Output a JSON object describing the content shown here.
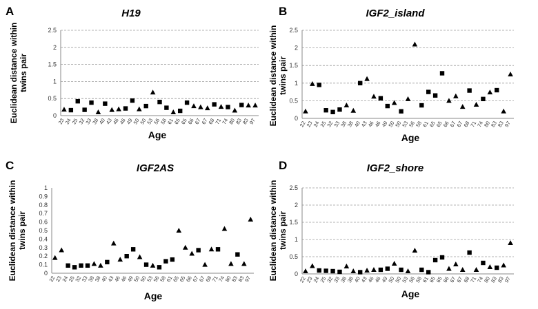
{
  "chart_data": [
    {
      "type": "scatter",
      "letter": "A",
      "title": "H19",
      "xlabel": "Age",
      "ylabel": [
        "Euclidean distance within",
        "twins pair"
      ],
      "ylim": [
        0,
        2.5
      ],
      "yticks": [
        "0",
        "0.5",
        "1",
        "1.5",
        "2",
        "2.5"
      ],
      "grid": true,
      "categories": [
        "23",
        "24",
        "25",
        "32",
        "33",
        "38",
        "40",
        "43",
        "46",
        "46",
        "49",
        "50",
        "50",
        "53",
        "56",
        "58",
        "61",
        "65",
        "65",
        "66",
        "67",
        "67",
        "68",
        "71",
        "74",
        "80",
        "83",
        "83",
        "97"
      ],
      "markers": [
        "triangle",
        "square",
        "square",
        "square",
        "square",
        "triangle",
        "square",
        "triangle",
        "triangle",
        "square",
        "square",
        "triangle",
        "square",
        "triangle",
        "square",
        "square",
        "triangle",
        "square",
        "square",
        "triangle",
        "triangle",
        "triangle",
        "square",
        "triangle",
        "square",
        "triangle",
        "square",
        "triangle",
        "triangle"
      ],
      "values": [
        0.18,
        0.16,
        0.42,
        0.17,
        0.38,
        0.1,
        0.35,
        0.17,
        0.19,
        0.21,
        0.44,
        0.19,
        0.28,
        0.68,
        0.4,
        0.23,
        0.1,
        0.14,
        0.38,
        0.28,
        0.25,
        0.22,
        0.33,
        0.26,
        0.25,
        0.15,
        0.31,
        0.3,
        0.3
      ]
    },
    {
      "type": "scatter",
      "letter": "B",
      "title": "IGF2_island",
      "xlabel": "Age",
      "ylabel": [
        "Euclidean distance within",
        "twins pair"
      ],
      "ylim": [
        0,
        2.5
      ],
      "yticks": [
        "0",
        "0.5",
        "1",
        "1.5",
        "2",
        "2.5"
      ],
      "grid": true,
      "categories": [
        "22",
        "23",
        "24",
        "25",
        "32",
        "33",
        "38",
        "38",
        "40",
        "43",
        "46",
        "46",
        "49",
        "50",
        "50",
        "53",
        "56",
        "58",
        "61",
        "65",
        "65",
        "66",
        "67",
        "67",
        "68",
        "71",
        "74",
        "80",
        "83",
        "83",
        "97"
      ],
      "markers": [
        "triangle",
        "triangle",
        "square",
        "square",
        "square",
        "square",
        "triangle",
        "triangle",
        "square",
        "triangle",
        "triangle",
        "square",
        "square",
        "triangle",
        "square",
        "triangle",
        "triangle",
        "square",
        "square",
        "square",
        "square",
        "triangle",
        "triangle",
        "triangle",
        "square",
        "triangle",
        "square",
        "triangle",
        "square",
        "triangle",
        "triangle"
      ],
      "values": [
        0.2,
        0.98,
        0.95,
        0.23,
        0.18,
        0.25,
        0.37,
        0.22,
        1.0,
        1.12,
        0.62,
        0.57,
        0.35,
        0.44,
        0.2,
        0.55,
        2.1,
        0.37,
        0.75,
        0.65,
        1.28,
        0.5,
        0.63,
        0.33,
        0.79,
        0.39,
        0.55,
        0.74,
        0.8,
        0.2,
        1.25
      ]
    },
    {
      "type": "scatter",
      "letter": "C",
      "title": "IGF2AS",
      "xlabel": "Age",
      "ylabel": [
        "Euclidean distance within",
        "twins pair"
      ],
      "ylim": [
        0,
        1
      ],
      "yticks": [
        "0",
        "0.1",
        "0.2",
        "0.3",
        "0.4",
        "0.5",
        "0.6",
        "0.7",
        "0.8",
        "0.9",
        "1"
      ],
      "grid": false,
      "categories": [
        "22",
        "23",
        "24",
        "25",
        "32",
        "33",
        "38",
        "38",
        "40",
        "43",
        "46",
        "46",
        "49",
        "50",
        "50",
        "53",
        "56",
        "58",
        "61",
        "65",
        "65",
        "66",
        "67",
        "67",
        "68",
        "71",
        "74",
        "80",
        "83",
        "83",
        "97"
      ],
      "markers": [
        "triangle",
        "triangle",
        "square",
        "square",
        "square",
        "square",
        "triangle",
        "triangle",
        "square",
        "triangle",
        "triangle",
        "square",
        "square",
        "triangle",
        "square",
        "triangle",
        "square",
        "square",
        "square",
        "triangle",
        "triangle",
        "triangle",
        "square",
        "triangle",
        "triangle",
        "square",
        "triangle",
        "triangle",
        "square",
        "triangle",
        "triangle"
      ],
      "values": [
        0.18,
        0.27,
        0.09,
        0.07,
        0.09,
        0.09,
        0.11,
        0.09,
        0.13,
        0.35,
        0.16,
        0.2,
        0.28,
        0.19,
        0.1,
        0.09,
        0.07,
        0.14,
        0.16,
        0.5,
        0.3,
        0.23,
        0.27,
        0.1,
        0.28,
        0.28,
        0.52,
        0.11,
        0.22,
        0.11,
        0.63
      ]
    },
    {
      "type": "scatter",
      "letter": "D",
      "title": "IGF2_shore",
      "xlabel": "Age",
      "ylabel": [
        "Euclidean distance within",
        "twins pair"
      ],
      "ylim": [
        0,
        2.5
      ],
      "yticks": [
        "0",
        "0.5",
        "1",
        "1.5",
        "2",
        "2.5"
      ],
      "grid": true,
      "categories": [
        "22",
        "23",
        "24",
        "25",
        "32",
        "33",
        "38",
        "38",
        "40",
        "43",
        "46",
        "46",
        "49",
        "50",
        "50",
        "53",
        "56",
        "58",
        "61",
        "65",
        "65",
        "66",
        "67",
        "67",
        "68",
        "71",
        "74",
        "80",
        "83",
        "83",
        "97"
      ],
      "markers": [
        "triangle",
        "triangle",
        "square",
        "square",
        "square",
        "square",
        "triangle",
        "triangle",
        "square",
        "triangle",
        "triangle",
        "square",
        "square",
        "triangle",
        "square",
        "triangle",
        "triangle",
        "square",
        "square",
        "square",
        "square",
        "triangle",
        "triangle",
        "triangle",
        "square",
        "triangle",
        "square",
        "triangle",
        "square",
        "triangle",
        "triangle"
      ],
      "values": [
        0.08,
        0.23,
        0.1,
        0.09,
        0.08,
        0.06,
        0.22,
        0.08,
        0.05,
        0.1,
        0.12,
        0.12,
        0.15,
        0.3,
        0.12,
        0.08,
        0.68,
        0.12,
        0.05,
        0.4,
        0.48,
        0.15,
        0.28,
        0.12,
        0.62,
        0.12,
        0.32,
        0.2,
        0.18,
        0.25,
        0.9
      ]
    }
  ]
}
